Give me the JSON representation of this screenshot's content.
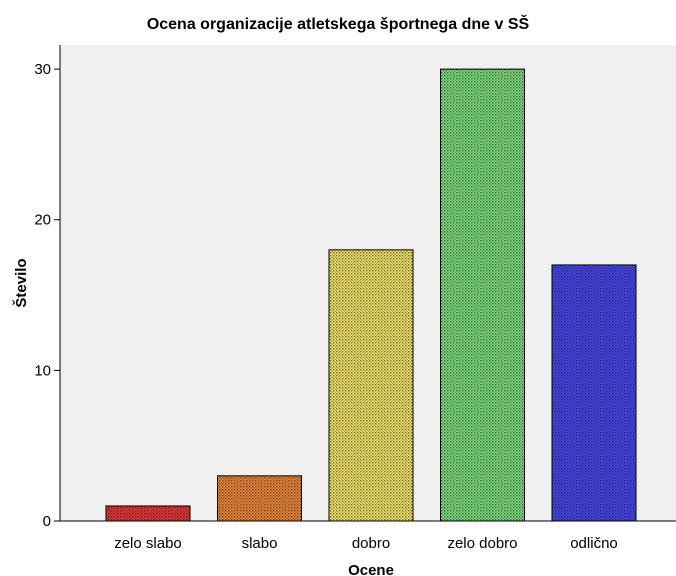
{
  "chart_data": {
    "type": "bar",
    "title": "Ocena organizacije atletskega športnega dne v SŠ",
    "xlabel": "Ocene",
    "ylabel": "Število",
    "categories": [
      "zelo slabo",
      "slabo",
      "dobro",
      "zelo dobro",
      "odlično"
    ],
    "values": [
      1,
      3,
      18,
      30,
      17
    ],
    "colors": [
      "#e83a3a",
      "#f08a3a",
      "#f5e86a",
      "#7ee07e",
      "#4a4af0"
    ],
    "ylim": [
      0,
      31.6
    ],
    "yticks": [
      0,
      10,
      20,
      30
    ],
    "grid": false,
    "pattern": "dotted-fill"
  }
}
